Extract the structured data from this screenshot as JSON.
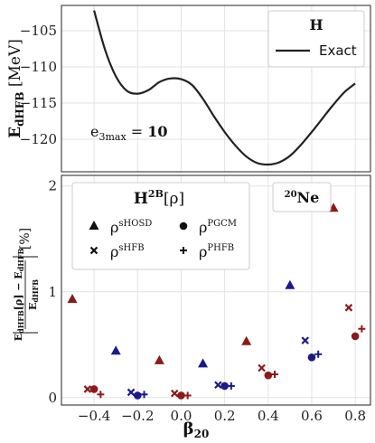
{
  "chart_data": [
    {
      "type": "line",
      "ylabel": "E_dHFB [MeV]",
      "xlim": [
        -0.55,
        0.87
      ],
      "ylim": [
        -124.5,
        -101.5
      ],
      "yticks": [
        "−105",
        "−110",
        "−115",
        "−120"
      ],
      "ytick_values": [
        -105,
        -110,
        -115,
        -120
      ],
      "annotation": "e3max = 10",
      "legend": {
        "title": "H",
        "position": "top-right",
        "entries": [
          "Exact"
        ]
      },
      "series": [
        {
          "name": "Exact",
          "color": "#222222",
          "x": [
            -0.4,
            -0.35,
            -0.3,
            -0.25,
            -0.2,
            -0.15,
            -0.1,
            -0.05,
            0.0,
            0.05,
            0.1,
            0.15,
            0.2,
            0.25,
            0.3,
            0.35,
            0.4,
            0.45,
            0.5,
            0.55,
            0.6,
            0.65,
            0.7,
            0.75,
            0.8
          ],
          "y": [
            -102.2,
            -107.6,
            -111.3,
            -113.3,
            -113.7,
            -113.2,
            -112.1,
            -111.6,
            -111.7,
            -112.5,
            -114.4,
            -116.8,
            -119.0,
            -120.9,
            -122.4,
            -123.3,
            -123.5,
            -123.2,
            -122.3,
            -120.8,
            -119.0,
            -117.1,
            -115.2,
            -113.5,
            -112.3
          ]
        }
      ]
    },
    {
      "type": "scatter",
      "xlabel": "β20",
      "ylabel": "|(E_dHFB[ρ] − E_dHFB) / E_dHFB|  [%]",
      "xlim": [
        -0.55,
        0.87
      ],
      "ylim": [
        -0.07,
        2.1
      ],
      "xticks": [
        "−0.4",
        "−0.2",
        "0.0",
        "0.2",
        "0.4",
        "0.6",
        "0.8"
      ],
      "xtick_values": [
        -0.4,
        -0.2,
        0.0,
        0.2,
        0.4,
        0.6,
        0.8
      ],
      "yticks": [
        "0",
        "1",
        "2"
      ],
      "ytick_values": [
        0,
        1,
        2
      ],
      "annotation": "20Ne",
      "legend": {
        "title": "H2B[ρ]",
        "position": "upper-left",
        "entries": [
          {
            "label": "ρsHOSD",
            "marker": "triangle"
          },
          {
            "label": "ρPGCM",
            "marker": "circle"
          },
          {
            "label": "ρsHFB",
            "marker": "x"
          },
          {
            "label": "ρPHFB",
            "marker": "plus"
          }
        ]
      },
      "series": [
        {
          "name": "ρsHOSD",
          "marker": "triangle",
          "x": [
            -0.5,
            -0.3,
            -0.1,
            0.1,
            0.3,
            0.5,
            0.7
          ],
          "y": [
            0.93,
            0.44,
            0.35,
            0.32,
            0.53,
            1.06,
            1.79
          ],
          "colors": [
            "#8b1a1a",
            "#1a1a8b",
            "#8b1a1a",
            "#1a1a8b",
            "#8b1a1a",
            "#1a1a8b",
            "#8b1a1a"
          ]
        },
        {
          "name": "ρPGCM",
          "marker": "circle",
          "x": [
            -0.4,
            -0.2,
            0.0,
            0.2,
            0.4,
            0.6,
            0.8
          ],
          "y": [
            0.08,
            0.02,
            0.02,
            0.11,
            0.21,
            0.38,
            0.58
          ],
          "colors": [
            "#8b1a1a",
            "#1a1a8b",
            "#8b1a1a",
            "#1a1a8b",
            "#8b1a1a",
            "#1a1a8b",
            "#8b1a1a"
          ]
        },
        {
          "name": "ρsHFB",
          "marker": "x",
          "x": [
            -0.43,
            -0.23,
            -0.03,
            0.17,
            0.37,
            0.57,
            0.77
          ],
          "y": [
            0.08,
            0.05,
            0.04,
            0.12,
            0.28,
            0.54,
            0.85
          ],
          "colors": [
            "#8b1a1a",
            "#1a1a8b",
            "#8b1a1a",
            "#1a1a8b",
            "#8b1a1a",
            "#1a1a8b",
            "#8b1a1a"
          ]
        },
        {
          "name": "ρPHFB",
          "marker": "plus",
          "x": [
            -0.37,
            -0.17,
            0.03,
            0.23,
            0.43,
            0.63,
            0.83
          ],
          "y": [
            0.03,
            0.03,
            0.02,
            0.11,
            0.22,
            0.41,
            0.65
          ],
          "colors": [
            "#8b1a1a",
            "#1a1a8b",
            "#8b1a1a",
            "#1a1a8b",
            "#8b1a1a",
            "#1a1a8b",
            "#8b1a1a"
          ]
        }
      ]
    }
  ]
}
